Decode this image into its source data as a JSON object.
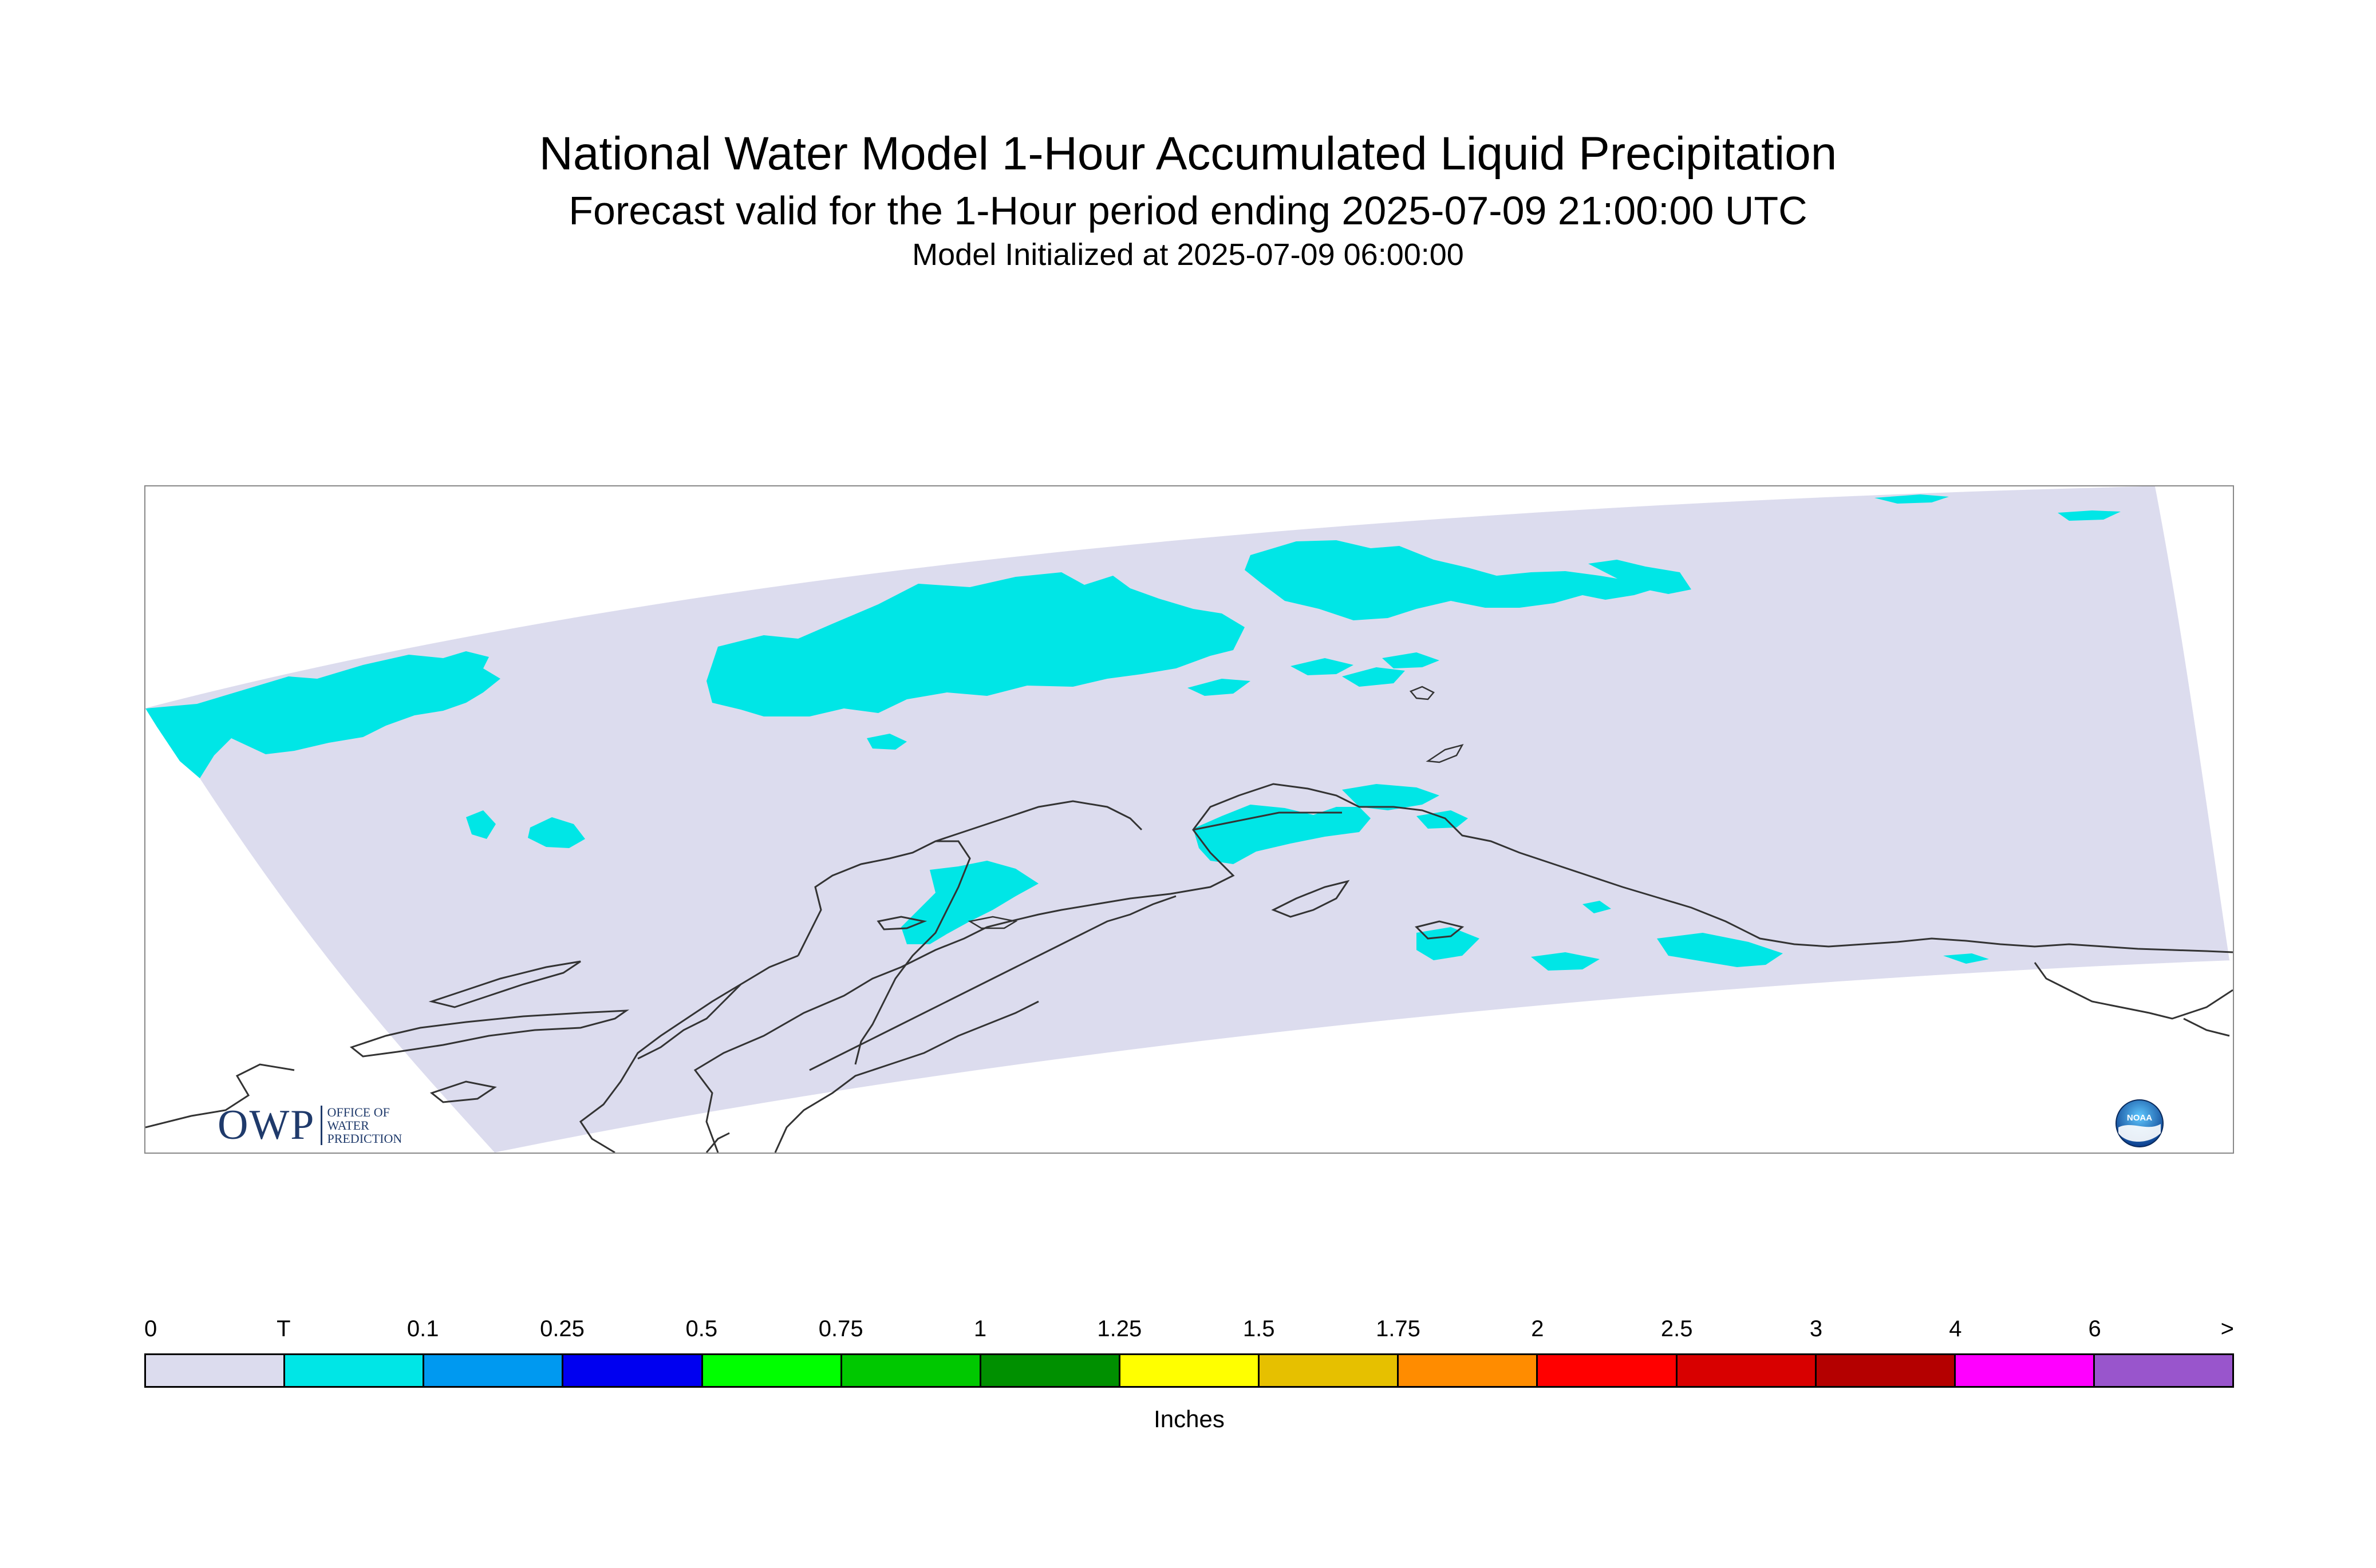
{
  "titles": {
    "main": "National Water Model 1-Hour Accumulated Liquid Precipitation",
    "forecast": "Forecast valid for the 1-Hour period ending 2025-07-09 21:00:00 UTC",
    "init": "Model Initialized at 2025-07-09 06:00:00"
  },
  "map": {
    "domain_color": "#dcdcee",
    "trace_color": "#00e6e6",
    "coastline_color": "#333333"
  },
  "logos": {
    "owp_mark": "OWP",
    "owp_sub": [
      "OFFICE OF",
      "WATER",
      "PREDICTION"
    ],
    "noaa_text": "NOAA"
  },
  "colorbar": {
    "unit": "Inches",
    "labels": [
      "0",
      "T",
      "0.1",
      "0.25",
      "0.5",
      "0.75",
      "1",
      "1.25",
      "1.5",
      "1.75",
      "2",
      "2.5",
      "3",
      "4",
      "6",
      ">"
    ],
    "colors": [
      "#dcdcee",
      "#00e6e6",
      "#0099f0",
      "#0000f0",
      "#00ff00",
      "#00c800",
      "#009000",
      "#ffff00",
      "#e6c000",
      "#ff8c00",
      "#ff0000",
      "#d80000",
      "#b40000",
      "#ff00ff",
      "#9955cc"
    ]
  }
}
